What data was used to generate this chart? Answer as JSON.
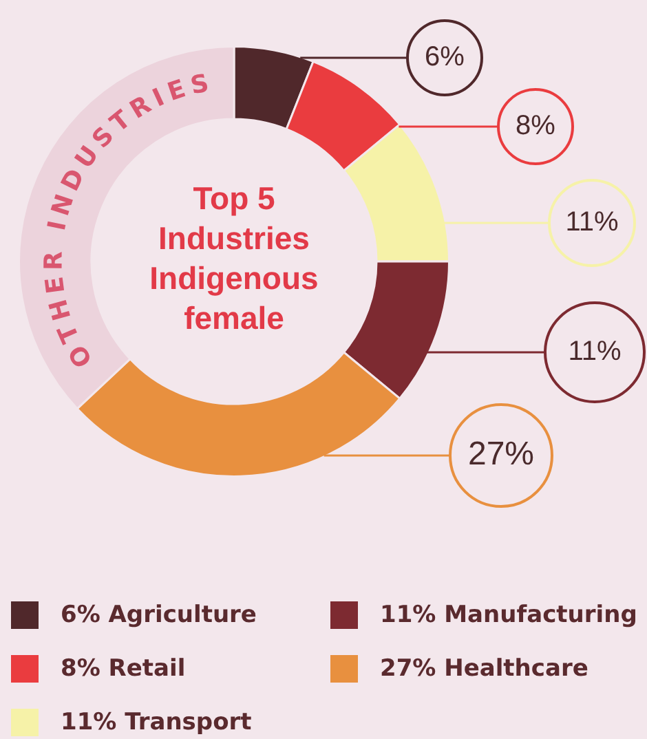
{
  "chart_data": {
    "type": "donut",
    "title": "Top 5 Industries Indigenous female",
    "categories": [
      "Agriculture",
      "Retail",
      "Transport",
      "Manufacturing",
      "Healthcare",
      "OTHER INDUSTRIES"
    ],
    "values": [
      6,
      8,
      11,
      11,
      27,
      37
    ],
    "colors": [
      "#50282b",
      "#ea3c3f",
      "#f6f2a8",
      "#7d2a31",
      "#e8903f",
      "#ecd3dc"
    ],
    "value_labels": [
      "6%",
      "8%",
      "11%",
      "11%",
      "27%",
      null
    ],
    "legend": "bottom"
  }
}
